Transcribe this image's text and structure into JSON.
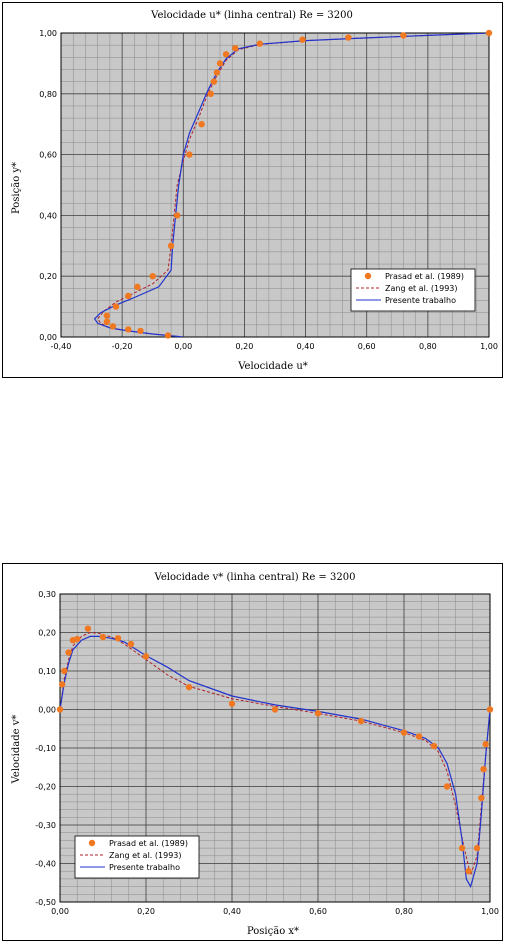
{
  "chart_data": [
    {
      "type": "line",
      "title": "Velocidade u* (linha central) Re = 3200",
      "xlabel": "Velocidade u*",
      "ylabel": "Posição y*",
      "xlim": [
        -0.4,
        1.0
      ],
      "ylim": [
        0.0,
        1.0
      ],
      "xticks": [
        "-0,40",
        "-0,20",
        "0,00",
        "0,20",
        "0,40",
        "0,60",
        "0,80",
        "1,00"
      ],
      "yticks": [
        "0,00",
        "0,20",
        "0,40",
        "0,60",
        "0,80",
        "1,00"
      ],
      "grid": true,
      "legend_position": "bottom-right",
      "legend_labels": [
        "Prasad et al. (1989)",
        "Zang et al. (1993)",
        "Presente trabalho"
      ],
      "series": [
        {
          "name": "Prasad et al. (1989)",
          "kind": "scatter",
          "color": "#f07820",
          "x": [
            -0.05,
            -0.14,
            -0.18,
            -0.23,
            -0.25,
            -0.25,
            -0.22,
            -0.18,
            -0.15,
            -0.1,
            -0.04,
            -0.02,
            0.02,
            0.06,
            0.09,
            0.1,
            0.11,
            0.12,
            0.14,
            0.17,
            0.25,
            0.39,
            0.54,
            0.72,
            1.0
          ],
          "y": [
            0.005,
            0.02,
            0.025,
            0.035,
            0.05,
            0.07,
            0.1,
            0.135,
            0.165,
            0.2,
            0.3,
            0.4,
            0.6,
            0.7,
            0.8,
            0.84,
            0.87,
            0.9,
            0.93,
            0.95,
            0.965,
            0.978,
            0.985,
            0.992,
            1.0
          ]
        },
        {
          "name": "Zang et al. (1993)",
          "kind": "dashed",
          "color": "#b0202a",
          "x": [
            0.0,
            -0.1,
            -0.18,
            -0.24,
            -0.27,
            -0.28,
            -0.26,
            -0.22,
            -0.17,
            -0.1,
            -0.05,
            -0.04,
            -0.03,
            -0.02,
            0.0,
            0.02,
            0.05,
            0.08,
            0.11,
            0.14,
            0.18,
            0.25,
            0.4,
            0.6,
            0.8,
            1.0
          ],
          "y": [
            0.0,
            0.01,
            0.02,
            0.03,
            0.045,
            0.06,
            0.085,
            0.115,
            0.14,
            0.175,
            0.22,
            0.3,
            0.4,
            0.5,
            0.58,
            0.65,
            0.72,
            0.8,
            0.86,
            0.91,
            0.945,
            0.962,
            0.975,
            0.984,
            0.992,
            1.0
          ]
        },
        {
          "name": "Presente trabalho",
          "kind": "solid",
          "color": "#2233cc",
          "x": [
            0.0,
            -0.1,
            -0.18,
            -0.24,
            -0.28,
            -0.29,
            -0.27,
            -0.22,
            -0.16,
            -0.08,
            -0.04,
            -0.035,
            -0.025,
            -0.015,
            0.0,
            0.02,
            0.05,
            0.08,
            0.11,
            0.14,
            0.18,
            0.25,
            0.4,
            0.6,
            0.8,
            1.0
          ],
          "y": [
            0.0,
            0.01,
            0.02,
            0.03,
            0.045,
            0.06,
            0.08,
            0.105,
            0.13,
            0.165,
            0.22,
            0.3,
            0.4,
            0.5,
            0.6,
            0.67,
            0.74,
            0.81,
            0.87,
            0.915,
            0.948,
            0.963,
            0.975,
            0.984,
            0.992,
            1.0
          ]
        }
      ]
    },
    {
      "type": "line",
      "title": "Velocidade v* (linha central) Re = 3200",
      "xlabel": "Posição x*",
      "ylabel": "Velocidade v*",
      "xlim": [
        0.0,
        1.0
      ],
      "ylim": [
        -0.5,
        0.3
      ],
      "xticks": [
        "0,00",
        "0,20",
        "0,40",
        "0,60",
        "0,80",
        "1,00"
      ],
      "yticks": [
        "-0,50",
        "-0,40",
        "-0,30",
        "-0,20",
        "-0,10",
        "0,00",
        "0,10",
        "0,20",
        "0,30"
      ],
      "grid": true,
      "legend_position": "bottom-left",
      "legend_labels": [
        "Prasad et al. (1989)",
        "Zang et al. (1993)",
        "Presente trabalho"
      ],
      "series": [
        {
          "name": "Prasad et al. (1989)",
          "kind": "scatter",
          "color": "#f07820",
          "x": [
            0.0,
            0.005,
            0.01,
            0.02,
            0.03,
            0.04,
            0.065,
            0.1,
            0.135,
            0.165,
            0.2,
            0.3,
            0.4,
            0.5,
            0.6,
            0.7,
            0.8,
            0.835,
            0.87,
            0.9,
            0.935,
            0.95,
            0.97,
            0.98,
            0.985,
            0.99,
            1.0
          ],
          "y": [
            0.0,
            0.065,
            0.1,
            0.148,
            0.18,
            0.183,
            0.21,
            0.188,
            0.185,
            0.17,
            0.138,
            0.058,
            0.015,
            0.0,
            -0.01,
            -0.03,
            -0.06,
            -0.07,
            -0.095,
            -0.2,
            -0.36,
            -0.42,
            -0.36,
            -0.23,
            -0.155,
            -0.09,
            0.0
          ]
        },
        {
          "name": "Zang et al. (1993)",
          "kind": "dashed",
          "color": "#b0202a",
          "x": [
            0.0,
            0.01,
            0.02,
            0.03,
            0.05,
            0.07,
            0.09,
            0.12,
            0.15,
            0.2,
            0.25,
            0.3,
            0.4,
            0.5,
            0.6,
            0.7,
            0.75,
            0.8,
            0.85,
            0.88,
            0.9,
            0.92,
            0.94,
            0.955,
            0.97,
            0.98,
            0.99,
            1.0
          ],
          "y": [
            0.0,
            0.08,
            0.13,
            0.165,
            0.19,
            0.2,
            0.198,
            0.188,
            0.17,
            0.13,
            0.09,
            0.06,
            0.028,
            0.008,
            -0.01,
            -0.03,
            -0.045,
            -0.06,
            -0.08,
            -0.11,
            -0.16,
            -0.25,
            -0.36,
            -0.43,
            -0.38,
            -0.25,
            -0.12,
            0.0
          ]
        },
        {
          "name": "Presente trabalho",
          "kind": "solid",
          "color": "#2233cc",
          "x": [
            0.0,
            0.01,
            0.02,
            0.03,
            0.05,
            0.07,
            0.09,
            0.12,
            0.15,
            0.2,
            0.25,
            0.3,
            0.4,
            0.5,
            0.6,
            0.7,
            0.75,
            0.8,
            0.85,
            0.88,
            0.9,
            0.92,
            0.935,
            0.945,
            0.955,
            0.97,
            0.98,
            0.99,
            1.0
          ],
          "y": [
            0.0,
            0.07,
            0.12,
            0.155,
            0.18,
            0.19,
            0.19,
            0.185,
            0.175,
            0.14,
            0.11,
            0.075,
            0.035,
            0.012,
            -0.005,
            -0.025,
            -0.04,
            -0.055,
            -0.075,
            -0.1,
            -0.14,
            -0.22,
            -0.34,
            -0.44,
            -0.46,
            -0.4,
            -0.27,
            -0.12,
            0.0
          ]
        }
      ]
    }
  ]
}
